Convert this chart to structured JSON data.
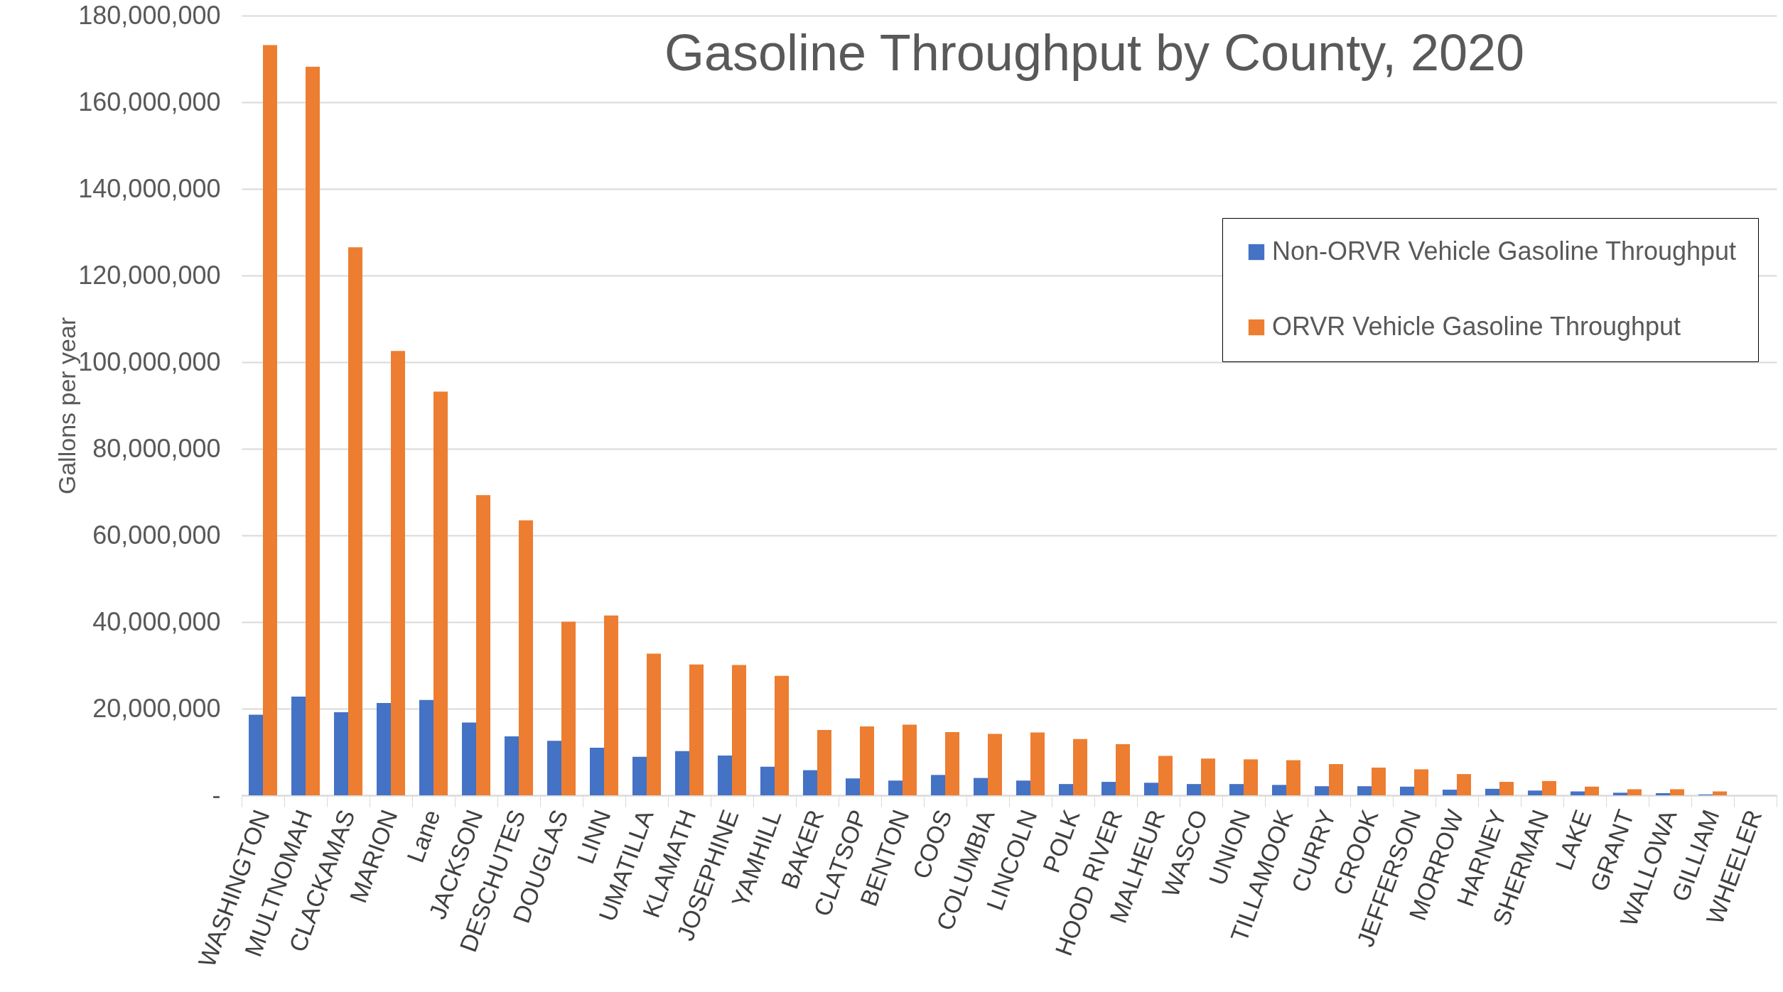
{
  "chart_data": {
    "type": "bar",
    "title": "Gasoline Throughput by County, 2020",
    "ylabel": "Gallons per year",
    "categories": [
      "WASHINGTON",
      "MULTNOMAH",
      "CLACKAMAS",
      "MARION",
      "Lane",
      "JACKSON",
      "DESCHUTES",
      "DOUGLAS",
      "LINN",
      "UMATILLA",
      "KLAMATH",
      "JOSEPHINE",
      "YAMHILL",
      "BAKER",
      "CLATSOP",
      "BENTON",
      "COOS",
      "COLUMBIA",
      "LINCOLN",
      "POLK",
      "HOOD RIVER",
      "MALHEUR",
      "WASCO",
      "UNION",
      "TILLAMOOK",
      "CURRY",
      "CROOK",
      "JEFFERSON",
      "MORROW",
      "HARNEY",
      "SHERMAN",
      "LAKE",
      "GRANT",
      "WALLOWA",
      "GILLIAM",
      "WHEELER"
    ],
    "series": [
      {
        "name": "Non-ORVR Vehicle Gasoline Throughput",
        "color": "#4472c4",
        "values": [
          18600000,
          22800000,
          19200000,
          21300000,
          22000000,
          16800000,
          13600000,
          12600000,
          11000000,
          8900000,
          10200000,
          9200000,
          6600000,
          5800000,
          3900000,
          3400000,
          4700000,
          4000000,
          3400000,
          2600000,
          3100000,
          2900000,
          2600000,
          2600000,
          2400000,
          2100000,
          2100000,
          2000000,
          1300000,
          1500000,
          1100000,
          900000,
          600000,
          500000,
          200000,
          null
        ]
      },
      {
        "name": "ORVR Vehicle Gasoline Throughput",
        "color": "#ed7d31",
        "values": [
          173200000,
          168200000,
          126500000,
          102600000,
          93200000,
          69300000,
          63500000,
          40100000,
          41500000,
          32700000,
          30200000,
          30100000,
          27600000,
          15100000,
          15900000,
          16300000,
          14600000,
          14200000,
          14500000,
          13000000,
          11800000,
          9100000,
          8500000,
          8300000,
          8100000,
          7200000,
          6400000,
          6000000,
          4900000,
          3100000,
          3300000,
          2000000,
          1400000,
          1400000,
          900000,
          null
        ]
      }
    ],
    "ylim": [
      0,
      180000000
    ],
    "yticks": [
      {
        "value": 0,
        "label": "-"
      },
      {
        "value": 20000000,
        "label": "20,000,000"
      },
      {
        "value": 40000000,
        "label": "40,000,000"
      },
      {
        "value": 60000000,
        "label": "60,000,000"
      },
      {
        "value": 80000000,
        "label": "80,000,000"
      },
      {
        "value": 100000000,
        "label": "100,000,000"
      },
      {
        "value": 120000000,
        "label": "120,000,000"
      },
      {
        "value": 140000000,
        "label": "140,000,000"
      },
      {
        "value": 160000000,
        "label": "160,000,000"
      },
      {
        "value": 180000000,
        "label": "180,000,000"
      }
    ],
    "grid": "y",
    "legend": "top right"
  }
}
